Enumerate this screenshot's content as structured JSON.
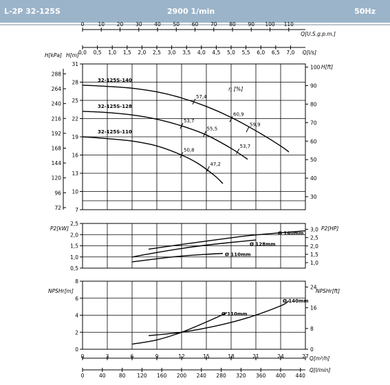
{
  "header": {
    "model": "L-2P 32-125S",
    "speed": "2900 1/min",
    "frequency": "50Hz"
  },
  "chart_data": [
    {
      "type": "line",
      "name": "head",
      "top_axis_q_gpm": {
        "label": "Q[U.S.g.p.m.]",
        "ticks": [
          "0",
          "10",
          "20",
          "30",
          "40",
          "50",
          "60",
          "70",
          "80",
          "90",
          "100",
          "110"
        ]
      },
      "top_axis_q_ls": {
        "label": "Q[l/s]",
        "ticks": [
          "0,0",
          "0,5",
          "1,0",
          "1,5",
          "2,0",
          "2,5",
          "3,0",
          "3,5",
          "4,0",
          "4,5",
          "5,0",
          "5,5",
          "6,0",
          "6,5",
          "7,0"
        ]
      },
      "left_axis_kpa": {
        "label": "H[kPa]",
        "ticks": [
          "288",
          "264",
          "240",
          "216",
          "192",
          "168",
          "144",
          "120",
          "96",
          "72"
        ]
      },
      "left_axis_m": {
        "label": "H[m]",
        "ticks": [
          "31",
          "28",
          "25",
          "22",
          "19",
          "16",
          "13",
          "10",
          "7"
        ]
      },
      "right_axis_ft": {
        "label": "H[ft]",
        "ticks": [
          "100",
          "90",
          "80",
          "70",
          "60",
          "50",
          "40",
          "30"
        ]
      },
      "xlim_m3h": [
        0,
        27
      ],
      "ylim_m": [
        7,
        31
      ],
      "efficiency_label": "η [%]",
      "series": [
        {
          "name": "32-125S-140",
          "x": [
            0,
            3,
            6,
            9,
            12,
            15,
            18,
            21,
            24,
            25
          ],
          "y": [
            27.5,
            27.3,
            27.0,
            26.4,
            25.4,
            24.0,
            22.2,
            20.0,
            17.5,
            16.5
          ]
        },
        {
          "name": "32-125S-128",
          "x": [
            0,
            3,
            6,
            9,
            12,
            15,
            18,
            20
          ],
          "y": [
            23.2,
            23.0,
            22.6,
            21.9,
            20.8,
            19.3,
            17.1,
            15.3
          ]
        },
        {
          "name": "32-125S-110",
          "x": [
            0,
            3,
            6,
            9,
            12,
            14,
            16,
            17
          ],
          "y": [
            19.0,
            18.7,
            18.3,
            17.5,
            16.0,
            14.6,
            12.6,
            11.3
          ]
        }
      ],
      "efficiency_points": [
        {
          "label": "57,4",
          "x": 13.5,
          "y": 24.8
        },
        {
          "label": "60,9",
          "x": 18.0,
          "y": 21.9
        },
        {
          "label": "59,9",
          "x": 20.0,
          "y": 20.2
        },
        {
          "label": "53,7",
          "x": 12.0,
          "y": 20.8
        },
        {
          "label": "55,5",
          "x": 14.8,
          "y": 19.5
        },
        {
          "label": "53,7",
          "x": 18.8,
          "y": 16.6
        },
        {
          "label": "50,8",
          "x": 12.0,
          "y": 16.0
        },
        {
          "label": "47,2",
          "x": 15.2,
          "y": 13.7
        }
      ]
    },
    {
      "type": "line",
      "name": "power",
      "left_axis": {
        "label": "P2[kW]",
        "ticks": [
          "2,5",
          "2,0",
          "1,5",
          "1,0",
          "0,5"
        ]
      },
      "right_axis": {
        "label": "P2[HP]",
        "ticks": [
          "3,0",
          "2,5",
          "2,0",
          "1,5",
          "1,0"
        ]
      },
      "xlim_m3h": [
        0,
        27
      ],
      "ylim_kw": [
        0.5,
        2.5
      ],
      "series": [
        {
          "name": "Ø 140mm",
          "x": [
            8,
            12,
            16,
            20,
            24,
            27
          ],
          "y": [
            1.35,
            1.56,
            1.76,
            1.95,
            2.08,
            2.17
          ]
        },
        {
          "name": "Ø 128mm",
          "x": [
            6,
            9,
            12,
            15,
            18,
            21
          ],
          "y": [
            1.0,
            1.2,
            1.38,
            1.53,
            1.65,
            1.76
          ]
        },
        {
          "name": "Ø 110mm",
          "x": [
            6,
            9,
            12,
            15,
            17
          ],
          "y": [
            0.78,
            0.92,
            1.04,
            1.12,
            1.16
          ]
        }
      ],
      "labels": [
        "Ø 140mm",
        "Ø 128mm",
        "Ø 110mm"
      ]
    },
    {
      "type": "line",
      "name": "npsh",
      "left_axis": {
        "label": "NPSHr[m]",
        "ticks": [
          "8",
          "6",
          "4",
          "2",
          "0"
        ]
      },
      "right_axis": {
        "label": "NPSHr[ft]",
        "ticks": [
          "24",
          "16",
          "8",
          "0"
        ]
      },
      "xlim_m3h": [
        0,
        27
      ],
      "ylim_m": [
        0,
        8
      ],
      "series": [
        {
          "name": "Ø 140mm",
          "x": [
            8,
            12,
            16,
            20,
            24,
            25
          ],
          "y": [
            1.6,
            2.0,
            2.7,
            3.7,
            5.1,
            5.7
          ]
        },
        {
          "name": "Ø 110mm",
          "x": [
            6,
            9,
            12,
            15,
            17.5
          ],
          "y": [
            0.6,
            1.1,
            2.0,
            3.2,
            4.3
          ]
        }
      ],
      "labels": [
        "Ø 110mm",
        "Ø 140mm"
      ]
    },
    {
      "type": "axis",
      "name": "bottom",
      "q_m3h": {
        "label": "Q[m³/h]",
        "ticks": [
          "0",
          "3",
          "6",
          "9",
          "12",
          "15",
          "18",
          "21",
          "24",
          "27"
        ]
      },
      "q_lmin": {
        "label": "Q[l/min]",
        "ticks": [
          "0",
          "40",
          "80",
          "120",
          "160",
          "200",
          "240",
          "280",
          "320",
          "360",
          "400",
          "440"
        ]
      }
    }
  ]
}
